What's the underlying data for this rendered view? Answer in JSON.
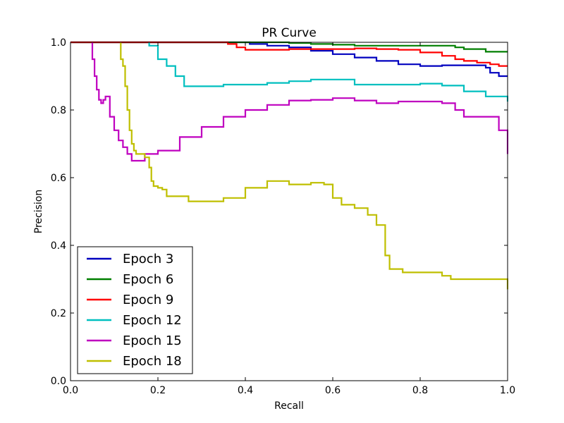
{
  "chart_data": {
    "type": "line",
    "title": "PR Curve",
    "xlabel": "Recall",
    "ylabel": "Precision",
    "xlim": [
      0.0,
      1.0
    ],
    "ylim": [
      0.0,
      1.0
    ],
    "xticks": [
      "0.0",
      "0.2",
      "0.4",
      "0.6",
      "0.8",
      "1.0"
    ],
    "yticks": [
      "0.0",
      "0.2",
      "0.4",
      "0.6",
      "0.8",
      "1.0"
    ],
    "grid": false,
    "legend_position": "bottom-left",
    "series": [
      {
        "name": "Epoch 3",
        "color": "#0000bf",
        "x": [
          0,
          0.4,
          0.41,
          0.45,
          0.5,
          0.55,
          0.6,
          0.65,
          0.7,
          0.75,
          0.8,
          0.85,
          0.9,
          0.95,
          0.96,
          0.98,
          1.0
        ],
        "y": [
          1.0,
          1.0,
          0.995,
          0.99,
          0.985,
          0.975,
          0.965,
          0.955,
          0.945,
          0.935,
          0.93,
          0.932,
          0.932,
          0.925,
          0.91,
          0.9,
          0.9
        ]
      },
      {
        "name": "Epoch 6",
        "color": "#007f00",
        "x": [
          0,
          0.4,
          0.45,
          0.5,
          0.55,
          0.6,
          0.65,
          0.7,
          0.8,
          0.85,
          0.88,
          0.9,
          0.95,
          1.0
        ],
        "y": [
          1.0,
          1.0,
          1.0,
          0.998,
          0.995,
          0.993,
          0.99,
          0.99,
          0.99,
          0.99,
          0.985,
          0.98,
          0.972,
          0.972
        ]
      },
      {
        "name": "Epoch 9",
        "color": "#ff0000",
        "x": [
          0,
          0.34,
          0.36,
          0.38,
          0.4,
          0.45,
          0.5,
          0.55,
          0.6,
          0.65,
          0.7,
          0.75,
          0.8,
          0.85,
          0.88,
          0.9,
          0.93,
          0.96,
          0.98,
          1.0
        ],
        "y": [
          1.0,
          1.0,
          0.995,
          0.985,
          0.978,
          0.978,
          0.98,
          0.98,
          0.98,
          0.982,
          0.98,
          0.978,
          0.97,
          0.96,
          0.95,
          0.945,
          0.94,
          0.935,
          0.93,
          0.93
        ]
      },
      {
        "name": "Epoch 12",
        "color": "#00bfbf",
        "x": [
          0.18,
          0.18,
          0.2,
          0.22,
          0.24,
          0.26,
          0.28,
          0.3,
          0.35,
          0.4,
          0.45,
          0.5,
          0.55,
          0.6,
          0.65,
          0.7,
          0.75,
          0.8,
          0.85,
          0.9,
          0.95,
          1.0
        ],
        "y": [
          1.0,
          0.99,
          0.95,
          0.93,
          0.9,
          0.87,
          0.87,
          0.87,
          0.875,
          0.875,
          0.88,
          0.885,
          0.89,
          0.89,
          0.875,
          0.875,
          0.875,
          0.878,
          0.872,
          0.855,
          0.84,
          0.825
        ]
      },
      {
        "name": "Epoch 15",
        "color": "#bf00bf",
        "x": [
          0.05,
          0.05,
          0.055,
          0.06,
          0.065,
          0.07,
          0.075,
          0.08,
          0.09,
          0.1,
          0.11,
          0.12,
          0.13,
          0.14,
          0.15,
          0.17,
          0.2,
          0.25,
          0.3,
          0.35,
          0.4,
          0.45,
          0.5,
          0.55,
          0.6,
          0.65,
          0.7,
          0.75,
          0.8,
          0.85,
          0.88,
          0.9,
          0.93,
          0.96,
          0.98,
          1.0,
          1.0
        ],
        "y": [
          1.0,
          0.95,
          0.9,
          0.86,
          0.83,
          0.82,
          0.83,
          0.84,
          0.78,
          0.74,
          0.71,
          0.69,
          0.67,
          0.65,
          0.65,
          0.67,
          0.68,
          0.72,
          0.75,
          0.78,
          0.8,
          0.815,
          0.828,
          0.83,
          0.835,
          0.828,
          0.82,
          0.825,
          0.825,
          0.82,
          0.8,
          0.78,
          0.78,
          0.78,
          0.74,
          0.7,
          0.67
        ]
      },
      {
        "name": "Epoch 18",
        "color": "#bfbf00",
        "x": [
          0.115,
          0.115,
          0.12,
          0.125,
          0.13,
          0.135,
          0.14,
          0.145,
          0.15,
          0.16,
          0.17,
          0.18,
          0.185,
          0.19,
          0.2,
          0.21,
          0.22,
          0.24,
          0.27,
          0.3,
          0.35,
          0.4,
          0.45,
          0.48,
          0.5,
          0.55,
          0.58,
          0.6,
          0.62,
          0.65,
          0.68,
          0.7,
          0.72,
          0.72,
          0.73,
          0.76,
          0.8,
          0.85,
          0.87,
          0.9,
          0.95,
          1.0
        ],
        "y": [
          1.0,
          0.95,
          0.93,
          0.87,
          0.8,
          0.74,
          0.7,
          0.68,
          0.67,
          0.67,
          0.66,
          0.63,
          0.59,
          0.575,
          0.57,
          0.565,
          0.545,
          0.545,
          0.53,
          0.53,
          0.54,
          0.57,
          0.59,
          0.59,
          0.58,
          0.585,
          0.58,
          0.54,
          0.52,
          0.51,
          0.49,
          0.46,
          0.42,
          0.37,
          0.33,
          0.32,
          0.32,
          0.31,
          0.3,
          0.3,
          0.3,
          0.27
        ]
      }
    ]
  }
}
